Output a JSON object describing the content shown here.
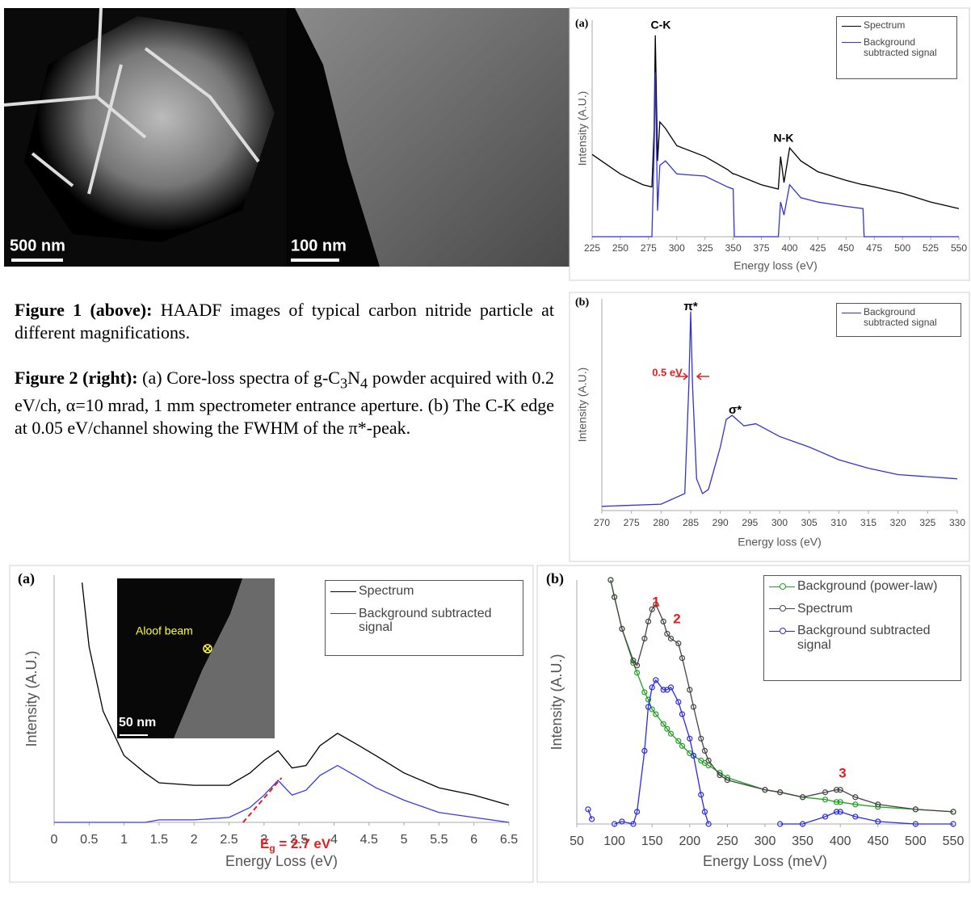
{
  "images": [
    {
      "scale_bar": "500 nm"
    },
    {
      "scale_bar": "100 nm"
    }
  ],
  "captions": [
    {
      "label": "Figure 1 (above):",
      "text": " HAADF images of typical carbon nitride particle at different magnifications."
    },
    {
      "label": "Figure 2 (right):",
      "parts": [
        " (a) Core-loss spectra of g-C",
        "3",
        "N",
        "4",
        " powder acquired with 0.2 eV/ch, α=10 mrad, 1 mm spectrometer entrance aperture. (b) The C-K edge at 0.05 eV/channel showing the FWHM of the π*-peak."
      ]
    }
  ],
  "chart_data": [
    {
      "type": "line",
      "title": "(a)",
      "x_label": "Energy loss (eV)",
      "y_label": "Intensity (A.U.)",
      "legend": "upper right",
      "markers": false,
      "x": [
        225,
        250,
        270,
        278,
        280,
        281,
        283,
        285,
        290,
        300,
        325,
        345,
        350,
        351,
        375,
        390,
        392,
        395,
        400,
        410,
        425,
        450,
        465,
        466,
        475,
        500,
        525,
        550
      ],
      "series": [
        {
          "name": "Spectrum",
          "color": "#000000",
          "values": [
            38,
            29,
            24,
            23,
            50,
            93,
            35,
            53,
            50,
            42,
            37,
            31,
            29,
            29,
            24,
            22,
            37,
            25,
            41,
            35,
            30,
            26,
            24,
            24,
            23,
            20,
            16,
            13
          ]
        },
        {
          "name": "Background subtracted signal",
          "color": "#3333cc",
          "values": [
            0,
            0,
            0,
            0,
            40,
            76,
            12,
            33,
            35,
            29,
            28,
            23,
            22,
            0,
            0,
            0,
            16,
            10,
            24,
            18,
            16,
            14,
            13,
            0,
            0,
            0,
            0,
            0
          ]
        }
      ],
      "xlim": [
        225,
        550
      ],
      "ylim": [
        0,
        100
      ],
      "xticks": [
        225,
        250,
        275,
        300,
        325,
        350,
        375,
        400,
        425,
        450,
        475,
        500,
        525,
        550
      ],
      "annotations": [
        {
          "text": "C-K"
        },
        {
          "text": "N-K"
        }
      ]
    },
    {
      "type": "line",
      "title": "(b)",
      "x_label": "Energy loss (eV)",
      "y_label": "Intensity (A.U.)",
      "legend": "upper right",
      "markers": false,
      "x": [
        270,
        280,
        284,
        284.7,
        285,
        285.3,
        286,
        287,
        288,
        290,
        291,
        292,
        294,
        296,
        300,
        305,
        310,
        315,
        320,
        325,
        330
      ],
      "series": [
        {
          "name": "Background subtracted signal",
          "color": "#3333cc",
          "values": [
            2,
            3,
            8,
            60,
            94,
            60,
            15,
            8,
            10,
            30,
            43,
            45,
            40,
            41,
            35,
            30,
            24,
            20,
            17,
            16,
            15
          ]
        }
      ],
      "xlim": [
        270,
        330
      ],
      "ylim": [
        0,
        100
      ],
      "xticks": [
        270,
        275,
        280,
        285,
        290,
        295,
        300,
        305,
        310,
        315,
        320,
        325,
        330
      ],
      "annotations": [
        {
          "text": "π*"
        },
        {
          "text": "σ*"
        },
        {
          "text": "0.5 eV"
        }
      ]
    },
    {
      "type": "line",
      "title": "(a)",
      "x_label": "Energy Loss (eV)",
      "y_label": "Intensity (A.U.)",
      "legend": "upper right",
      "markers": false,
      "x": [
        0,
        0.4,
        0.5,
        0.7,
        1.0,
        1.3,
        1.5,
        2.0,
        2.5,
        2.8,
        3.0,
        3.2,
        3.4,
        3.6,
        3.8,
        4.05,
        4.3,
        4.6,
        5.0,
        5.5,
        6.0,
        6.5
      ],
      "series": [
        {
          "name": "Spectrum",
          "color": "#000000",
          "values": [
            null,
            97,
            71,
            45,
            27,
            20,
            16,
            15,
            15,
            20,
            25,
            29,
            22,
            23,
            31,
            36,
            32,
            27,
            20,
            14,
            11,
            7
          ]
        },
        {
          "name": "Background subtracted signal",
          "color": "#3a3adf",
          "values": [
            0,
            0,
            0,
            0,
            0,
            0,
            1,
            1,
            2,
            6,
            11,
            17,
            11,
            13,
            19,
            23,
            19,
            14,
            9,
            4,
            2,
            0
          ]
        }
      ],
      "xlim": [
        0,
        6.5
      ],
      "ylim": [
        0,
        100
      ],
      "xticks": [
        0,
        0.5,
        1,
        1.5,
        2,
        2.5,
        3,
        3.5,
        4,
        4.5,
        5,
        5.5,
        6,
        6.5
      ],
      "fit_line": {
        "x": [
          2.7,
          3.25
        ],
        "values": [
          0,
          18
        ],
        "color": "#e02020"
      },
      "eg_label": [
        "E",
        "g",
        " = 2.7 eV"
      ],
      "inset": {
        "label": "Aloof beam",
        "scale_bar": "50 nm"
      }
    },
    {
      "type": "line",
      "title": "(b)",
      "x_label": "Energy Loss (meV)",
      "y_label": "Intensity (A.U.)",
      "legend": "upper right",
      "markers": true,
      "x": [
        65,
        70,
        95,
        100,
        110,
        125,
        130,
        140,
        145,
        150,
        155,
        165,
        170,
        175,
        185,
        190,
        200,
        205,
        215,
        220,
        225,
        240,
        250,
        300,
        320,
        350,
        380,
        395,
        400,
        420,
        450,
        500,
        550
      ],
      "series": [
        {
          "name": "Background (power-law)",
          "color": "#22a022",
          "values": [
            null,
            null,
            100,
            93,
            80,
            66,
            62,
            54,
            51,
            47,
            45,
            41,
            39,
            37,
            34,
            32,
            29,
            28,
            26,
            25,
            24,
            21,
            19,
            14,
            13,
            11,
            10,
            9,
            9,
            8,
            7,
            6,
            5
          ]
        },
        {
          "name": "Spectrum",
          "color": "#444444",
          "values": [
            null,
            null,
            100,
            93,
            80,
            67,
            65,
            76,
            83,
            88,
            90,
            83,
            78,
            76,
            74,
            68,
            55,
            48,
            35,
            30,
            26,
            20,
            18,
            14,
            13,
            11,
            13,
            14,
            14,
            11,
            8,
            6,
            5
          ]
        },
        {
          "name": "Background subtracted signal",
          "color": "#2a2ae0",
          "values": [
            6,
            2,
            null,
            0,
            1,
            0,
            5,
            30,
            48,
            56,
            59,
            55,
            55,
            56,
            50,
            45,
            35,
            28,
            12,
            5,
            0,
            null,
            null,
            null,
            0,
            0,
            3,
            5,
            5,
            3,
            1,
            0,
            0
          ]
        }
      ],
      "xlim": [
        50,
        550
      ],
      "ylim": [
        0,
        100
      ],
      "xticks": [
        50,
        100,
        150,
        200,
        250,
        300,
        350,
        400,
        450,
        500,
        550
      ],
      "annotations": [
        {
          "text": "1"
        },
        {
          "text": "2"
        },
        {
          "text": "3"
        }
      ]
    }
  ]
}
